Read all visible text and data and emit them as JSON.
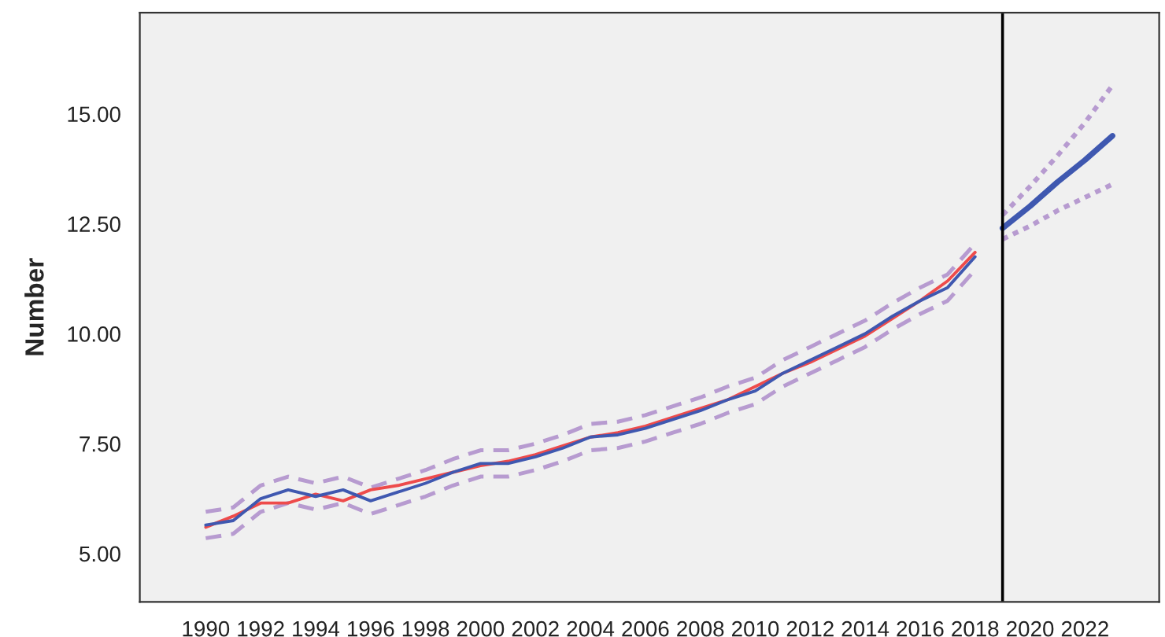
{
  "chart_data": {
    "type": "line",
    "ylabel": "Number",
    "xlim": [
      1987.6,
      2024.7
    ],
    "ylim": [
      3.9,
      17.3
    ],
    "xticks": [
      1990,
      1992,
      1994,
      1996,
      1998,
      2000,
      2002,
      2004,
      2006,
      2008,
      2010,
      2012,
      2014,
      2016,
      2018,
      2020,
      2022
    ],
    "yticks": [
      {
        "value": 5,
        "label": "5.00"
      },
      {
        "value": 7.5,
        "label": "7.50"
      },
      {
        "value": 10,
        "label": "10.00"
      },
      {
        "value": 12.5,
        "label": "12.50"
      },
      {
        "value": 15,
        "label": "15.00"
      }
    ],
    "grid": false,
    "legend": false,
    "marker": "none",
    "ref_lines": [
      {
        "axis": "x",
        "value": 2019,
        "color": "#000000",
        "line_style": "solid"
      }
    ],
    "series": [
      {
        "color": "#b79bd0",
        "line_style": "dashed",
        "x": [
          1990,
          1991,
          1992,
          1993,
          1994,
          1995,
          1996,
          1997,
          1998,
          1999,
          2000,
          2001,
          2002,
          2003,
          2004,
          2005,
          2006,
          2007,
          2008,
          2009,
          2010,
          2011,
          2012,
          2013,
          2014,
          2015,
          2016,
          2017,
          2018
        ],
        "values": [
          5.95,
          6.05,
          6.55,
          6.75,
          6.6,
          6.75,
          6.5,
          6.7,
          6.9,
          7.15,
          7.35,
          7.35,
          7.5,
          7.7,
          7.95,
          8.0,
          8.15,
          8.35,
          8.55,
          8.8,
          9.0,
          9.4,
          9.7,
          10.0,
          10.3,
          10.7,
          11.05,
          11.35,
          12.05
        ]
      },
      {
        "color": "#b79bd0",
        "line_style": "dashed",
        "x": [
          1990,
          1991,
          1992,
          1993,
          1994,
          1995,
          1996,
          1997,
          1998,
          1999,
          2000,
          2001,
          2002,
          2003,
          2004,
          2005,
          2006,
          2007,
          2008,
          2009,
          2010,
          2011,
          2012,
          2013,
          2014,
          2015,
          2016,
          2017,
          2018
        ],
        "values": [
          5.35,
          5.45,
          5.95,
          6.15,
          6.0,
          6.15,
          5.9,
          6.1,
          6.3,
          6.55,
          6.75,
          6.75,
          6.9,
          7.1,
          7.35,
          7.4,
          7.55,
          7.75,
          7.95,
          8.2,
          8.4,
          8.8,
          9.1,
          9.4,
          9.7,
          10.1,
          10.45,
          10.75,
          11.45
        ]
      },
      {
        "color": "#ee4b4b",
        "line_style": "solid",
        "x": [
          1990,
          1991,
          1992,
          1993,
          1994,
          1995,
          1996,
          1997,
          1998,
          1999,
          2000,
          2001,
          2002,
          2003,
          2004,
          2005,
          2006,
          2007,
          2008,
          2009,
          2010,
          2011,
          2012,
          2013,
          2014,
          2015,
          2016,
          2017,
          2018
        ],
        "values": [
          5.6,
          5.85,
          6.15,
          6.15,
          6.35,
          6.2,
          6.45,
          6.55,
          6.7,
          6.85,
          7.0,
          7.1,
          7.25,
          7.45,
          7.65,
          7.75,
          7.9,
          8.1,
          8.3,
          8.5,
          8.8,
          9.1,
          9.35,
          9.65,
          9.95,
          10.35,
          10.75,
          11.2,
          11.85
        ]
      },
      {
        "color": "#3f58b0",
        "line_style": "solid",
        "x": [
          1990,
          1991,
          1992,
          1993,
          1994,
          1995,
          1996,
          1997,
          1998,
          1999,
          2000,
          2001,
          2002,
          2003,
          2004,
          2005,
          2006,
          2007,
          2008,
          2009,
          2010,
          2011,
          2012,
          2013,
          2014,
          2015,
          2016,
          2017,
          2018
        ],
        "values": [
          5.65,
          5.75,
          6.25,
          6.45,
          6.3,
          6.45,
          6.2,
          6.4,
          6.6,
          6.85,
          7.05,
          7.05,
          7.2,
          7.4,
          7.65,
          7.7,
          7.85,
          8.05,
          8.25,
          8.5,
          8.7,
          9.1,
          9.4,
          9.7,
          10.0,
          10.4,
          10.75,
          11.05,
          11.75
        ]
      },
      {
        "color": "#b79bd0",
        "line_style": "dotted",
        "x": [
          2019,
          2020,
          2021,
          2022,
          2023
        ],
        "values": [
          12.7,
          13.35,
          14.05,
          14.8,
          15.65
        ]
      },
      {
        "color": "#b79bd0",
        "line_style": "dotted",
        "x": [
          2019,
          2020,
          2021,
          2022,
          2023
        ],
        "values": [
          12.15,
          12.45,
          12.8,
          13.1,
          13.4
        ]
      },
      {
        "color": "#3f58b0",
        "line_style": "solid",
        "x": [
          2019,
          2020,
          2021,
          2022,
          2023
        ],
        "values": [
          12.4,
          12.9,
          13.45,
          13.95,
          14.5
        ]
      }
    ]
  }
}
